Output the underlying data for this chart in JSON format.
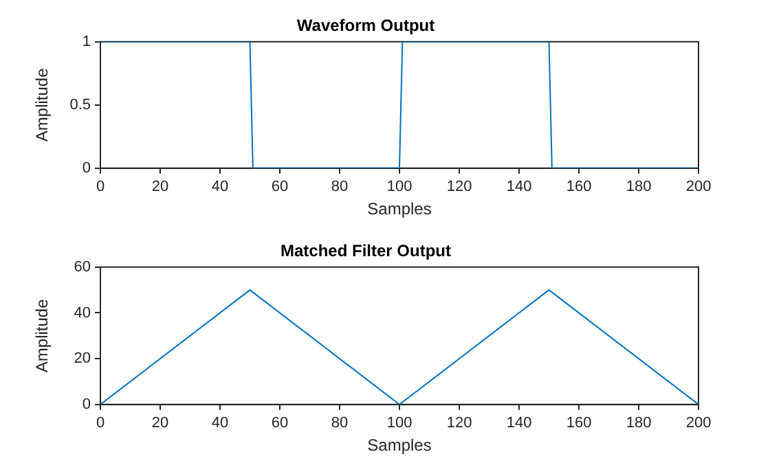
{
  "chart_data": [
    {
      "type": "line",
      "title": "Waveform Output",
      "xlabel": "Samples",
      "ylabel": "Amplitude",
      "xlim": [
        0,
        200
      ],
      "xticks": [
        0,
        20,
        40,
        60,
        80,
        100,
        120,
        140,
        160,
        180,
        200
      ],
      "ylim": [
        0,
        1
      ],
      "yticks": [
        0,
        0.5,
        1
      ],
      "grid": false,
      "legend": false,
      "marker": "none",
      "line_style": "solid",
      "series": [
        {
          "color": "#0072bd",
          "x": [
            0,
            50,
            51,
            100,
            101,
            150,
            151,
            200
          ],
          "values": [
            1,
            1,
            0,
            0,
            1,
            1,
            0,
            0
          ]
        }
      ]
    },
    {
      "type": "line",
      "title": "Matched Filter Output",
      "xlabel": "Samples",
      "ylabel": "Amplitude",
      "xlim": [
        0,
        200
      ],
      "xticks": [
        0,
        20,
        40,
        60,
        80,
        100,
        120,
        140,
        160,
        180,
        200
      ],
      "ylim": [
        0,
        60
      ],
      "yticks": [
        0,
        20,
        40,
        60
      ],
      "grid": false,
      "legend": false,
      "marker": "none",
      "line_style": "solid",
      "series": [
        {
          "color": "#0072bd",
          "x": [
            0,
            50,
            100,
            150,
            200
          ],
          "values": [
            0,
            50,
            0,
            50,
            0
          ]
        }
      ]
    }
  ]
}
